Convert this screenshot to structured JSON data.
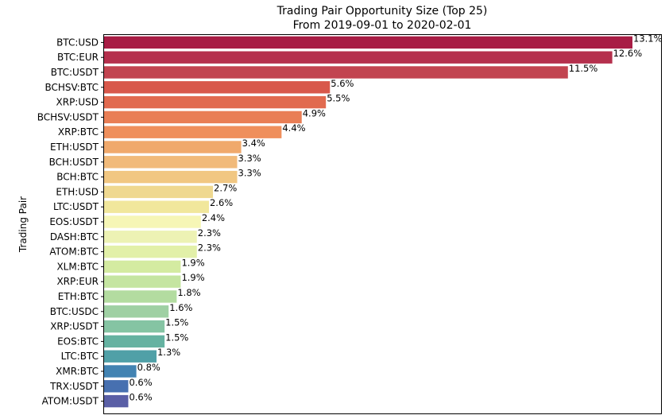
{
  "chart_data": {
    "type": "bar",
    "orientation": "horizontal",
    "title": "Trading Pair Opportunity Size (Top 25)",
    "subtitle": "From 2019-09-01 to 2020-02-01",
    "ylabel": "Trading Pair",
    "xlabel": "",
    "xlim": [
      0,
      13.1
    ],
    "grid": false,
    "legend": "none",
    "colormap": "Spectral",
    "categories": [
      "BTC:USD",
      "BTC:EUR",
      "BTC:USDT",
      "BCHSV:BTC",
      "XRP:USD",
      "BCHSV:USDT",
      "XRP:BTC",
      "ETH:USDT",
      "BCH:USDT",
      "BCH:BTC",
      "ETH:USD",
      "LTC:USDT",
      "EOS:USDT",
      "DASH:BTC",
      "ATOM:BTC",
      "XLM:BTC",
      "XRP:EUR",
      "ETH:BTC",
      "BTC:USDC",
      "XRP:USDT",
      "EOS:BTC",
      "LTC:BTC",
      "XMR:BTC",
      "TRX:USDT",
      "ATOM:USDT"
    ],
    "values": [
      13.1,
      12.6,
      11.5,
      5.6,
      5.5,
      4.9,
      4.4,
      3.4,
      3.3,
      3.3,
      2.7,
      2.6,
      2.4,
      2.3,
      2.3,
      1.9,
      1.9,
      1.8,
      1.6,
      1.5,
      1.5,
      1.3,
      0.8,
      0.6,
      0.6
    ],
    "value_labels": [
      "13.1%",
      "12.6%",
      "11.5%",
      "5.6%",
      "5.5%",
      "4.9%",
      "4.4%",
      "3.4%",
      "3.3%",
      "3.3%",
      "2.7%",
      "2.6%",
      "2.4%",
      "2.3%",
      "2.3%",
      "1.9%",
      "1.9%",
      "1.8%",
      "1.6%",
      "1.5%",
      "1.5%",
      "1.3%",
      "0.8%",
      "0.6%",
      "0.6%"
    ],
    "colors": [
      "#a81d45",
      "#b5304d",
      "#c24450",
      "#d8584b",
      "#e16a4f",
      "#e97e55",
      "#ef8f5c",
      "#f0a96c",
      "#f1ba7a",
      "#f1c782",
      "#efd890",
      "#f1e79c",
      "#f6f6b6",
      "#edf2b4",
      "#e2f0a8",
      "#d4eba1",
      "#c5e5a1",
      "#b3dca0",
      "#9fd0a3",
      "#85c4a3",
      "#65b2a1",
      "#50a0a7",
      "#4283b2",
      "#4770b0",
      "#5a5fa6"
    ]
  }
}
